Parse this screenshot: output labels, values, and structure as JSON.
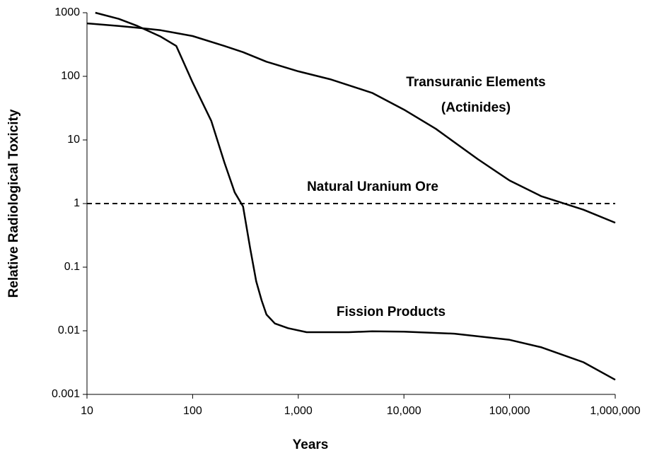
{
  "chart_data": {
    "type": "line",
    "xlabel": "Years",
    "ylabel": "Relative Radiological Toxicity",
    "xscale": "log",
    "yscale": "log",
    "xlim": [
      10,
      1000000
    ],
    "ylim": [
      0.001,
      1000
    ],
    "xticks": [
      10,
      100,
      {
        "value": 1000,
        "label": "1,000"
      },
      {
        "value": 10000,
        "label": "10,000"
      },
      {
        "value": 100000,
        "label": "100,000"
      },
      {
        "value": 1000000,
        "label": "1,000,000"
      }
    ],
    "yticks": [
      1000,
      100,
      10,
      1,
      0.1,
      0.01,
      0.001
    ],
    "grid": false,
    "series": [
      {
        "color": "#000000",
        "dashed": false,
        "x": [
          10,
          20,
          30,
          50,
          100,
          200,
          300,
          500,
          1000,
          2000,
          5000,
          10000,
          20000,
          50000,
          100000,
          200000,
          300000,
          500000,
          1000000
        ],
        "values": [
          680,
          620,
          580,
          530,
          430,
          300,
          240,
          170,
          120,
          90,
          55,
          30,
          15,
          5,
          2.3,
          1.3,
          1.05,
          0.8,
          0.5
        ]
      },
      {
        "color": "#000000",
        "dashed": true,
        "x": [
          10,
          1000000
        ],
        "values": [
          1,
          1
        ]
      },
      {
        "color": "#000000",
        "dashed": false,
        "x": [
          12,
          20,
          30,
          50,
          70,
          100,
          150,
          200,
          250,
          300,
          350,
          400,
          450,
          500,
          600,
          800,
          1200,
          3000,
          5000,
          10000,
          30000,
          100000,
          200000,
          500000,
          1000000
        ],
        "values": [
          1000,
          800,
          620,
          420,
          300,
          80,
          20,
          4.4,
          1.5,
          0.9,
          0.2,
          0.06,
          0.03,
          0.018,
          0.013,
          0.011,
          0.0095,
          0.0095,
          0.0098,
          0.0097,
          0.009,
          0.0072,
          0.0055,
          0.0032,
          0.0017
        ]
      }
    ],
    "annotations": [
      "Transuranic Elements",
      "(Actinides)",
      "Natural Uranium Ore",
      "Fission Products"
    ]
  }
}
